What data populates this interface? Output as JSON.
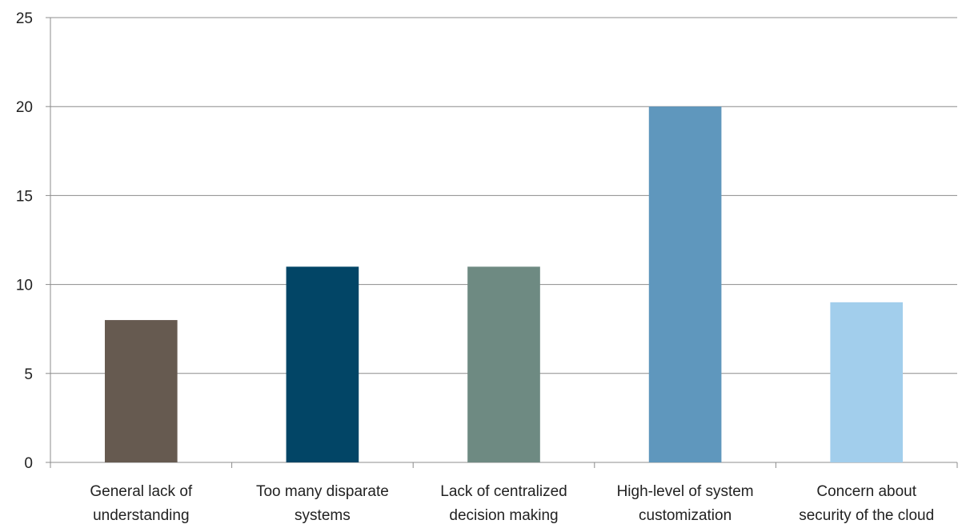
{
  "chart_data": {
    "type": "bar",
    "categories": [
      [
        "General lack of",
        "understanding"
      ],
      [
        "Too many disparate",
        "systems"
      ],
      [
        "Lack of centralized",
        "decision making"
      ],
      [
        "High-level of system",
        "customization"
      ],
      [
        "Concern about",
        "security of the cloud"
      ]
    ],
    "values": [
      8,
      11,
      11,
      20,
      9
    ],
    "colors": [
      "#665a50",
      "#024566",
      "#6e8a82",
      "#5f97bd",
      "#a2ceec"
    ],
    "ylim": [
      0,
      25
    ],
    "yticks": [
      "0",
      "5",
      "10",
      "15",
      "20",
      "25"
    ],
    "grid": true,
    "legend": "none",
    "title": "",
    "xlabel": "",
    "ylabel": ""
  }
}
